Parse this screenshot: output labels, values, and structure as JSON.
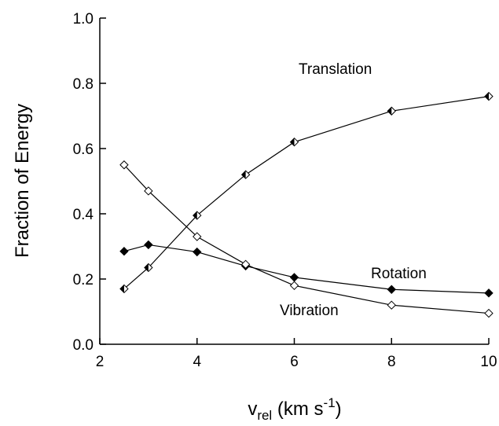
{
  "chart_data": {
    "type": "line",
    "ylabel": "Fraction of Energy",
    "xlabel": {
      "base": "v",
      "sub": "rel",
      "mid": " (km s",
      "sup": "-1",
      "end": ")"
    },
    "x": [
      2.5,
      3,
      4,
      5,
      6,
      8,
      10
    ],
    "series": [
      {
        "name": "Translation",
        "color": "#000000",
        "marker": "half",
        "values": [
          0.17,
          0.235,
          0.395,
          0.52,
          0.62,
          0.715,
          0.76
        ]
      },
      {
        "name": "Rotation",
        "color": "#000000",
        "marker": "filled",
        "values": [
          0.285,
          0.305,
          0.283,
          0.24,
          0.205,
          0.168,
          0.157
        ]
      },
      {
        "name": "Vibration",
        "color": "#000000",
        "marker": "open",
        "values": [
          0.55,
          0.47,
          0.33,
          0.245,
          0.18,
          0.12,
          0.095
        ]
      }
    ],
    "xlim": [
      2,
      10
    ],
    "xticks": [
      2,
      4,
      6,
      8,
      10
    ],
    "ylim": [
      0,
      1
    ],
    "yticks": [
      {
        "value": 0,
        "label": "0.0"
      },
      0.2,
      0.4,
      0.6,
      0.8,
      {
        "value": 1,
        "label": "1.0"
      }
    ]
  }
}
